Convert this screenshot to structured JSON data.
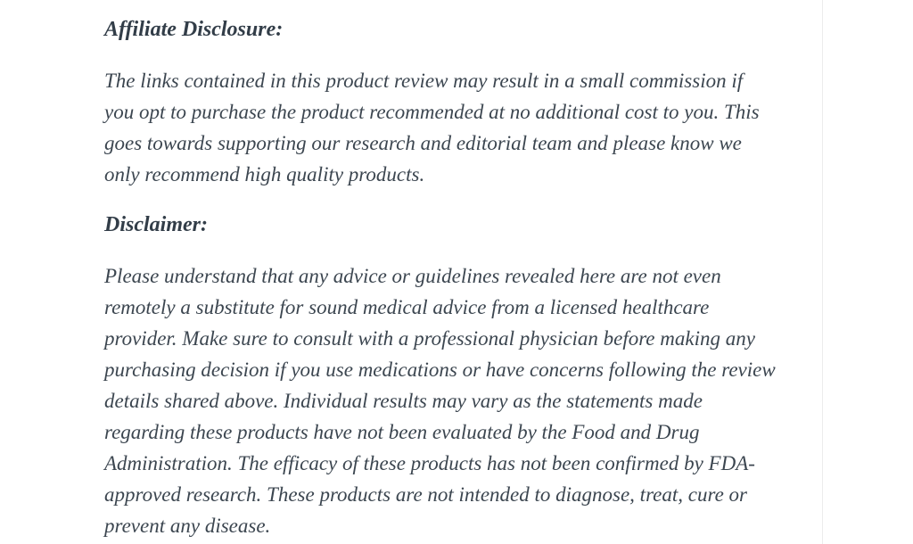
{
  "page": {
    "background_color": "#ffffff",
    "body_text_color": "#3c4650",
    "heading_text_color": "#323d48",
    "content_edge_color": "#ececec",
    "sections": [
      {
        "type": "heading",
        "text": "Affiliate Disclosure:"
      },
      {
        "type": "paragraph",
        "lines": [
          "The links contained in this product review may result in a small commission if",
          "you opt to purchase the product recommended at no additional cost to you. This",
          "goes towards supporting our research and editorial team and please know we",
          "only recommend high quality products."
        ]
      },
      {
        "type": "heading",
        "text": "Disclaimer:"
      },
      {
        "type": "paragraph",
        "lines": [
          "Please understand that any advice or guidelines revealed here are not even",
          "remotely a substitute for sound medical advice from a licensed healthcare",
          "provider. Make sure to consult with a professional physician before making any",
          "purchasing decision if you use medications or have concerns following the review",
          "details shared above. Individual results may vary as the statements made",
          "regarding these products have not been evaluated by the Food and Drug",
          "Administration. The efficacy of these products has not been confirmed by FDA-",
          "approved research. These products are not intended to diagnose, treat, cure or",
          "prevent any disease."
        ]
      }
    ]
  }
}
